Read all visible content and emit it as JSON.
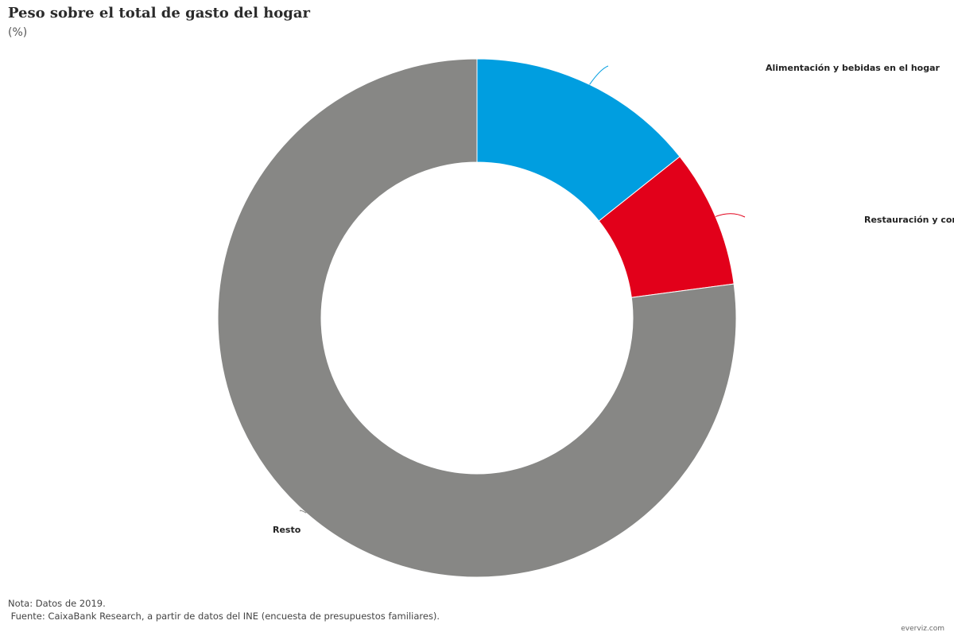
{
  "header": {
    "title": "Peso sobre el total de gasto del hogar",
    "subtitle": "(%)"
  },
  "chart_data": {
    "type": "pie",
    "donut": true,
    "categories": [
      "Alimentación y bebidas en el hogar",
      "Restauración y comedores",
      "Resto"
    ],
    "values": [
      14.3,
      8.6,
      77.1
    ],
    "colors": [
      "#009ee0",
      "#e2001a",
      "#878785"
    ],
    "title": "Peso sobre el total de gasto del hogar",
    "subtitle": "(%)",
    "legend": "none"
  },
  "footer": {
    "note": "Nota: Datos de 2019.",
    "source": " Fuente: CaixaBank Research, a partir de datos del INE (encuesta de presupuestos familiares).",
    "credit": "everviz.com"
  }
}
